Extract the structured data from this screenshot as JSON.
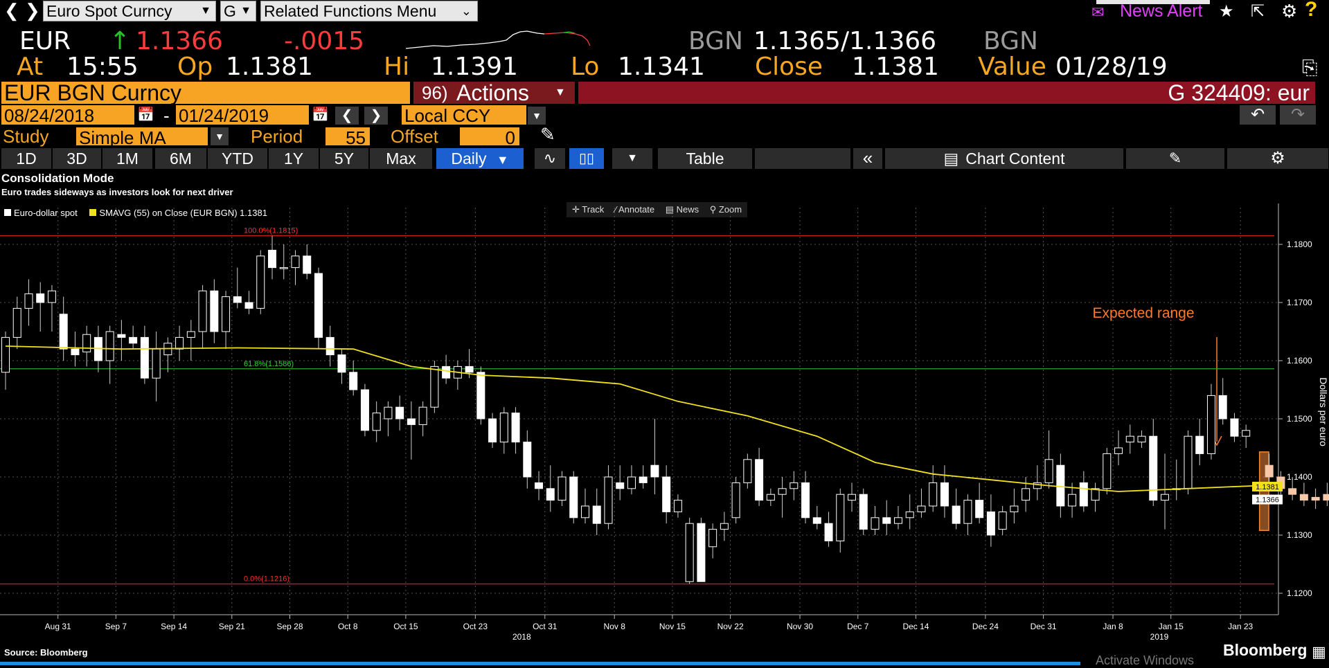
{
  "toolbar": {
    "security_field": "Euro Spot Curncy",
    "group_field": "G",
    "menu_field": "Related Functions Menu",
    "news_alert": "News Alert"
  },
  "quote": {
    "ticker": "EUR",
    "last": "1.1366",
    "change": "-.0015",
    "source_left": "BGN",
    "bid_ask": "1.1365/1.1366",
    "source_right": "BGN",
    "at_label": "At",
    "time": "15:55",
    "op_label": "Op",
    "open": "1.1381",
    "hi_label": "Hi",
    "high": "1.1391",
    "lo_label": "Lo",
    "low": "1.1341",
    "close_label": "Close",
    "close": "1.1381",
    "value_label": "Value",
    "value_date": "01/28/19"
  },
  "command": {
    "security": "EUR BGN Curncy",
    "actions_num": "96)",
    "actions": "Actions",
    "right_text": "G 324409: eur"
  },
  "controls": {
    "start_date": "08/24/2018",
    "dash": "-",
    "end_date": "01/24/2019",
    "currency": "Local CCY",
    "study_label": "Study",
    "study_value": "Simple MA",
    "period_label": "Period",
    "period_value": "55",
    "offset_label": "Offset",
    "offset_value": "0"
  },
  "tabs": {
    "ranges": [
      "1D",
      "3D",
      "1M",
      "6M",
      "YTD",
      "1Y",
      "5Y",
      "Max"
    ],
    "frequency": "Daily",
    "table": "Table",
    "chart_content": "Chart Content"
  },
  "chart_header": {
    "title": "Consolidation Mode",
    "subtitle": "Euro trades sideways as investors look for next driver",
    "legend_spot": "Euro-dollar spot",
    "legend_sma": "SMAVG (55)  on Close (EUR BGN) 1.1381",
    "track": "Track",
    "annotate": "Annotate",
    "news": "News",
    "zoom": "Zoom"
  },
  "footer": {
    "source": "Source: Bloomberg",
    "brand": "Bloomberg",
    "activate": "Activate Windows"
  },
  "colors": {
    "orange": "#f5a623",
    "candle_up": "#ffffff",
    "sma": "#f2e21b",
    "fib_red": "#d01818",
    "fib_green": "#2ea82e",
    "range_fill": "#f08a3a"
  },
  "chart_data": {
    "type": "candlestick",
    "title": "Consolidation Mode",
    "subtitle": "Euro trades sideways as investors look for next driver",
    "ylabel": "Dollars per euro",
    "ylim": [
      1.1135,
      1.187
    ],
    "yticks": [
      "1.1200",
      "1.1300",
      "1.1400",
      "1.1500",
      "1.1600",
      "1.1700",
      "1.1800"
    ],
    "x_labels": [
      "Aug 31",
      "Sep 7",
      "Sep 14",
      "Sep 21",
      "Sep 28",
      "Oct 8",
      "Oct 15",
      "Oct 23",
      "Oct 31",
      "Nov 8",
      "Nov 15",
      "Nov 22",
      "Nov 30",
      "Dec 7",
      "Dec 14",
      "Dec 24",
      "Dec 31",
      "Jan 8",
      "Jan 15",
      "Jan 23"
    ],
    "x_label_index": [
      5,
      10,
      15,
      20,
      25,
      30,
      35,
      41,
      47,
      53,
      58,
      63,
      69,
      74,
      79,
      85,
      90,
      96,
      101,
      107
    ],
    "year_labels": [
      {
        "text": "2018",
        "index": 45
      },
      {
        "text": "2019",
        "index": 100
      }
    ],
    "series": [
      {
        "name": "Euro-dollar spot",
        "ohlc": [
          [
            1.158,
            1.165,
            1.155,
            1.164
          ],
          [
            1.164,
            1.171,
            1.162,
            1.169
          ],
          [
            1.169,
            1.174,
            1.166,
            1.1715
          ],
          [
            1.1715,
            1.1735,
            1.165,
            1.17
          ],
          [
            1.17,
            1.173,
            1.165,
            1.172
          ],
          [
            1.168,
            1.171,
            1.16,
            1.162
          ],
          [
            1.162,
            1.165,
            1.159,
            1.161
          ],
          [
            1.1615,
            1.166,
            1.159,
            1.1645
          ],
          [
            1.164,
            1.166,
            1.158,
            1.16
          ],
          [
            1.16,
            1.166,
            1.156,
            1.165
          ],
          [
            1.1645,
            1.167,
            1.16,
            1.164
          ],
          [
            1.164,
            1.166,
            1.162,
            1.163
          ],
          [
            1.164,
            1.166,
            1.156,
            1.157
          ],
          [
            1.157,
            1.165,
            1.153,
            1.162
          ],
          [
            1.161,
            1.164,
            1.158,
            1.163
          ],
          [
            1.162,
            1.166,
            1.16,
            1.164
          ],
          [
            1.164,
            1.167,
            1.16,
            1.165
          ],
          [
            1.165,
            1.173,
            1.162,
            1.172
          ],
          [
            1.172,
            1.174,
            1.163,
            1.165
          ],
          [
            1.165,
            1.172,
            1.162,
            1.171
          ],
          [
            1.171,
            1.176,
            1.169,
            1.17
          ],
          [
            1.17,
            1.172,
            1.168,
            1.169
          ],
          [
            1.169,
            1.179,
            1.168,
            1.178
          ],
          [
            1.179,
            1.1815,
            1.174,
            1.176
          ],
          [
            1.176,
            1.18,
            1.174,
            1.176
          ],
          [
            1.176,
            1.179,
            1.173,
            1.178
          ],
          [
            1.178,
            1.18,
            1.174,
            1.175
          ],
          [
            1.175,
            1.176,
            1.162,
            1.164
          ],
          [
            1.164,
            1.166,
            1.159,
            1.161
          ],
          [
            1.161,
            1.162,
            1.156,
            1.158
          ],
          [
            1.158,
            1.16,
            1.154,
            1.155
          ],
          [
            1.155,
            1.156,
            1.147,
            1.148
          ],
          [
            1.148,
            1.153,
            1.146,
            1.151
          ],
          [
            1.15,
            1.153,
            1.147,
            1.152
          ],
          [
            1.152,
            1.154,
            1.148,
            1.15
          ],
          [
            1.15,
            1.153,
            1.143,
            1.149
          ],
          [
            1.149,
            1.153,
            1.147,
            1.152
          ],
          [
            1.152,
            1.16,
            1.151,
            1.159
          ],
          [
            1.159,
            1.161,
            1.156,
            1.157
          ],
          [
            1.157,
            1.16,
            1.155,
            1.159
          ],
          [
            1.159,
            1.162,
            1.157,
            1.158
          ],
          [
            1.158,
            1.159,
            1.149,
            1.15
          ],
          [
            1.15,
            1.151,
            1.145,
            1.146
          ],
          [
            1.146,
            1.152,
            1.144,
            1.151
          ],
          [
            1.151,
            1.152,
            1.144,
            1.146
          ],
          [
            1.146,
            1.148,
            1.138,
            1.14
          ],
          [
            1.139,
            1.141,
            1.136,
            1.138
          ],
          [
            1.138,
            1.142,
            1.134,
            1.136
          ],
          [
            1.136,
            1.141,
            1.135,
            1.14
          ],
          [
            1.14,
            1.141,
            1.132,
            1.133
          ],
          [
            1.133,
            1.138,
            1.132,
            1.135
          ],
          [
            1.135,
            1.138,
            1.13,
            1.132
          ],
          [
            1.132,
            1.142,
            1.131,
            1.14
          ],
          [
            1.139,
            1.142,
            1.136,
            1.138
          ],
          [
            1.138,
            1.142,
            1.137,
            1.14
          ],
          [
            1.14,
            1.142,
            1.138,
            1.139
          ],
          [
            1.142,
            1.15,
            1.137,
            1.14
          ],
          [
            1.14,
            1.142,
            1.132,
            1.134
          ],
          [
            1.134,
            1.137,
            1.133,
            1.136
          ],
          [
            1.122,
            1.133,
            1.1216,
            1.132
          ],
          [
            1.132,
            1.133,
            1.122,
            1.122
          ],
          [
            1.128,
            1.132,
            1.126,
            1.131
          ],
          [
            1.131,
            1.134,
            1.129,
            1.132
          ],
          [
            1.133,
            1.14,
            1.132,
            1.139
          ],
          [
            1.139,
            1.144,
            1.138,
            1.143
          ],
          [
            1.143,
            1.145,
            1.135,
            1.136
          ],
          [
            1.136,
            1.138,
            1.135,
            1.137
          ],
          [
            1.137,
            1.14,
            1.133,
            1.138
          ],
          [
            1.138,
            1.141,
            1.136,
            1.139
          ],
          [
            1.139,
            1.141,
            1.132,
            1.133
          ],
          [
            1.133,
            1.135,
            1.131,
            1.132
          ],
          [
            1.132,
            1.134,
            1.128,
            1.129
          ],
          [
            1.129,
            1.138,
            1.127,
            1.137
          ],
          [
            1.136,
            1.139,
            1.134,
            1.137
          ],
          [
            1.137,
            1.138,
            1.13,
            1.131
          ],
          [
            1.131,
            1.135,
            1.13,
            1.133
          ],
          [
            1.133,
            1.136,
            1.13,
            1.132
          ],
          [
            1.132,
            1.135,
            1.131,
            1.133
          ],
          [
            1.133,
            1.137,
            1.131,
            1.134
          ],
          [
            1.134,
            1.138,
            1.133,
            1.135
          ],
          [
            1.135,
            1.142,
            1.134,
            1.139
          ],
          [
            1.139,
            1.142,
            1.133,
            1.135
          ],
          [
            1.135,
            1.138,
            1.131,
            1.132
          ],
          [
            1.132,
            1.137,
            1.13,
            1.136
          ],
          [
            1.136,
            1.139,
            1.132,
            1.133
          ],
          [
            1.134,
            1.137,
            1.128,
            1.13
          ],
          [
            1.131,
            1.135,
            1.13,
            1.134
          ],
          [
            1.134,
            1.138,
            1.132,
            1.135
          ],
          [
            1.136,
            1.14,
            1.134,
            1.138
          ],
          [
            1.138,
            1.142,
            1.136,
            1.139
          ],
          [
            1.139,
            1.148,
            1.138,
            1.143
          ],
          [
            1.142,
            1.144,
            1.133,
            1.135
          ],
          [
            1.135,
            1.139,
            1.133,
            1.137
          ],
          [
            1.139,
            1.141,
            1.134,
            1.135
          ],
          [
            1.136,
            1.139,
            1.134,
            1.138
          ],
          [
            1.138,
            1.145,
            1.137,
            1.144
          ],
          [
            1.144,
            1.148,
            1.142,
            1.145
          ],
          [
            1.146,
            1.149,
            1.144,
            1.147
          ],
          [
            1.146,
            1.148,
            1.145,
            1.147
          ],
          [
            1.147,
            1.15,
            1.135,
            1.136
          ],
          [
            1.136,
            1.144,
            1.131,
            1.137
          ],
          [
            1.138,
            1.143,
            1.136,
            1.138
          ],
          [
            1.138,
            1.148,
            1.137,
            1.147
          ],
          [
            1.147,
            1.15,
            1.142,
            1.144
          ],
          [
            1.144,
            1.156,
            1.143,
            1.154
          ],
          [
            1.154,
            1.157,
            1.149,
            1.15
          ],
          [
            1.15,
            1.151,
            1.146,
            1.147
          ],
          [
            1.147,
            1.149,
            1.145,
            1.148
          ]
        ]
      },
      {
        "name": "SMAVG (55)  on Close (EUR BGN) 1.1381",
        "x_index": [
          0,
          10,
          20,
          30,
          35,
          41,
          47,
          53,
          58,
          64,
          70,
          75,
          80,
          85,
          90,
          96,
          102,
          108
        ],
        "values": [
          1.1625,
          1.162,
          1.1622,
          1.162,
          1.159,
          1.1575,
          1.157,
          1.156,
          1.153,
          1.1505,
          1.147,
          1.1425,
          1.1405,
          1.1395,
          1.1385,
          1.1375,
          1.138,
          1.1385
        ]
      }
    ],
    "future_candles": [
      [
        1.142,
        1.144,
        1.139,
        1.14
      ],
      [
        1.14,
        1.141,
        1.137,
        1.138
      ],
      [
        1.138,
        1.14,
        1.136,
        1.137
      ],
      [
        1.137,
        1.139,
        1.135,
        1.136
      ],
      [
        1.1365,
        1.138,
        1.1345,
        1.136
      ],
      [
        1.136,
        1.139,
        1.135,
        1.137
      ],
      [
        1.137,
        1.1385,
        1.135,
        1.136
      ]
    ],
    "fib_levels": [
      {
        "label": "100.0%(1.1815)",
        "value": 1.1815,
        "color": "#d01818"
      },
      {
        "label": "61.8%(1.1586)",
        "value": 1.1586,
        "color": "#2ea82e"
      },
      {
        "label": "0.0%(1.1216)",
        "value": 1.1216,
        "color": "#d01818"
      }
    ],
    "price_tags": [
      {
        "label": "1.1381",
        "value": 1.1381,
        "style": "yellow"
      },
      {
        "label": "1.1366",
        "value": 1.1366,
        "style": "white"
      }
    ],
    "expected_range": {
      "label": "Expected range",
      "y_low": 1.1308,
      "y_high": 1.1443,
      "x_start_index": 109
    }
  }
}
